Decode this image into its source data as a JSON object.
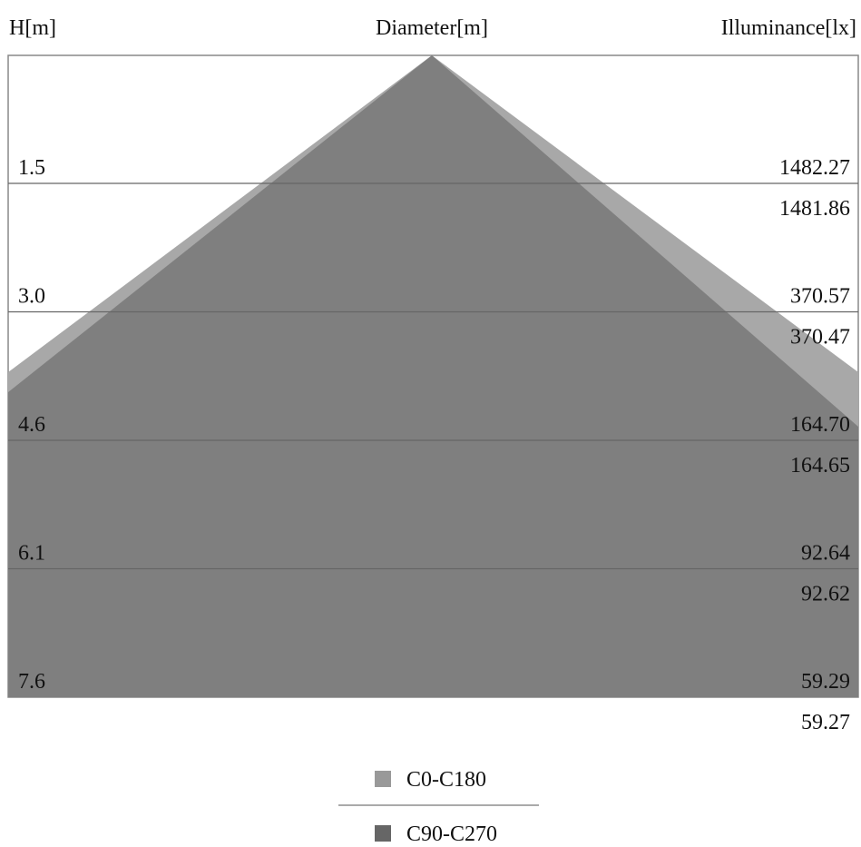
{
  "header": {
    "height": "H[m]",
    "diameter": "Diameter[m]",
    "illuminance": "Illuminance[lx]"
  },
  "rows": [
    {
      "height": "1.5",
      "illuminance_c0": "1482.27",
      "illuminance_c90": "1481.86"
    },
    {
      "height": "3.0",
      "illuminance_c0": "370.57",
      "illuminance_c90": "370.47"
    },
    {
      "height": "4.6",
      "illuminance_c0": "164.70",
      "illuminance_c90": "164.65"
    },
    {
      "height": "6.1",
      "illuminance_c0": "92.64",
      "illuminance_c90": "92.62"
    },
    {
      "height": "7.6",
      "illuminance_c0": "59.29",
      "illuminance_c90": "59.27"
    }
  ],
  "legend": [
    "C0-C180",
    "C90-C270"
  ]
}
